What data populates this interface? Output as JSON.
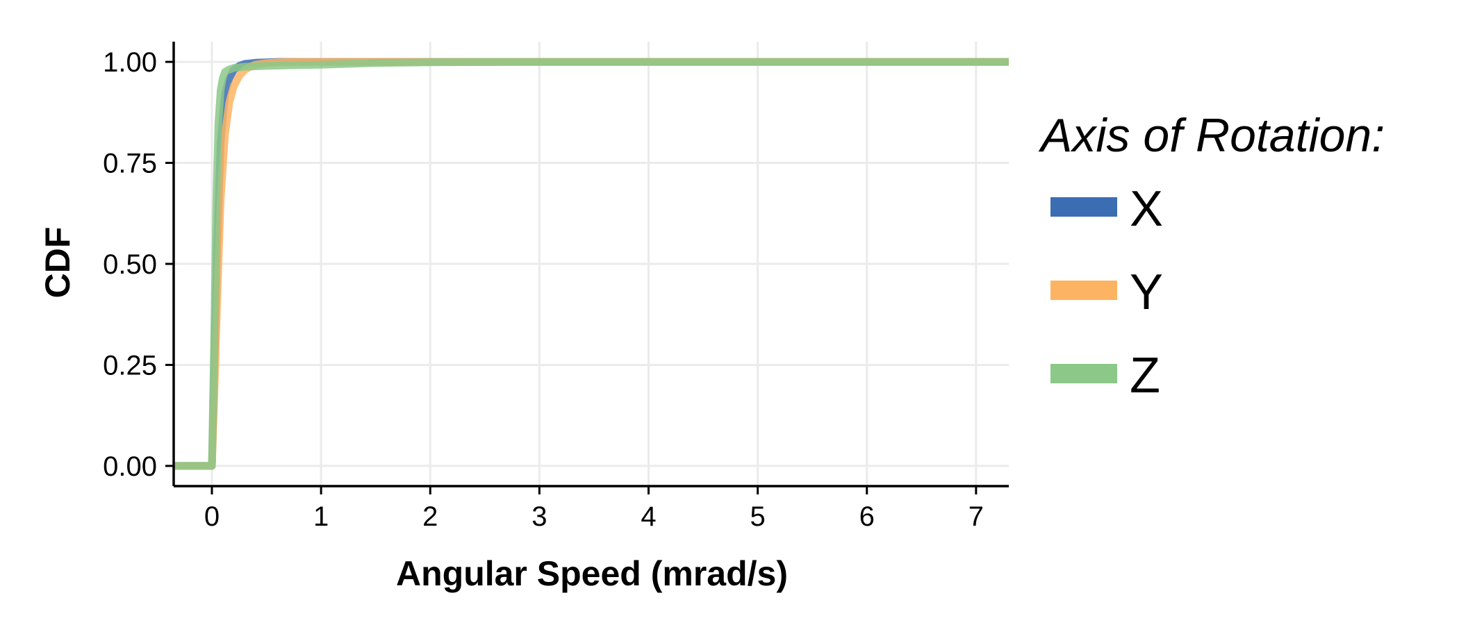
{
  "chart_data": {
    "type": "line",
    "title": "",
    "xlabel": "Angular Speed (mrad/s)",
    "ylabel": "CDF",
    "xlim": [
      -0.35,
      7.3
    ],
    "ylim": [
      -0.05,
      1.05
    ],
    "x_ticks": [
      0,
      1,
      2,
      3,
      4,
      5,
      6,
      7
    ],
    "x_tick_labels": [
      "0",
      "1",
      "2",
      "3",
      "4",
      "5",
      "6",
      "7"
    ],
    "y_ticks": [
      0,
      0.25,
      0.5,
      0.75,
      1
    ],
    "y_tick_labels": [
      "0.00",
      "0.25",
      "0.50",
      "0.75",
      "1.00"
    ],
    "grid": true,
    "legend": {
      "title": "Axis of Rotation:",
      "placement": "right"
    },
    "series": [
      {
        "name": "X",
        "color": "#3b6db3",
        "x": [
          -0.35,
          0,
          0.02,
          0.05,
          0.08,
          0.12,
          0.16,
          0.2,
          0.25,
          0.3,
          0.4,
          0.5,
          0.6,
          1.0,
          2.0,
          3.0,
          7.3
        ],
        "y": [
          0,
          0,
          0.2,
          0.55,
          0.8,
          0.92,
          0.96,
          0.98,
          0.99,
          0.995,
          0.998,
          0.999,
          1,
          1,
          1,
          1,
          1
        ]
      },
      {
        "name": "Y",
        "color": "#fdb462",
        "x": [
          -0.35,
          0,
          0.02,
          0.05,
          0.08,
          0.12,
          0.16,
          0.2,
          0.25,
          0.3,
          0.35,
          0.4,
          0.5,
          0.6,
          0.8,
          1.0,
          2.0,
          7.3
        ],
        "y": [
          0,
          0,
          0.15,
          0.42,
          0.66,
          0.82,
          0.9,
          0.94,
          0.965,
          0.98,
          0.988,
          0.993,
          0.997,
          0.999,
          1,
          1,
          1,
          1
        ]
      },
      {
        "name": "Z",
        "color": "#8cc888",
        "x": [
          -0.35,
          0,
          0.02,
          0.04,
          0.06,
          0.08,
          0.1,
          0.12,
          0.15,
          0.2,
          0.3,
          0.5,
          0.8,
          1.0,
          1.5,
          2.0,
          3.0,
          7.3
        ],
        "y": [
          0,
          0,
          0.3,
          0.65,
          0.85,
          0.93,
          0.96,
          0.975,
          0.98,
          0.985,
          0.988,
          0.99,
          0.992,
          0.993,
          0.997,
          0.999,
          1,
          1
        ]
      }
    ]
  }
}
